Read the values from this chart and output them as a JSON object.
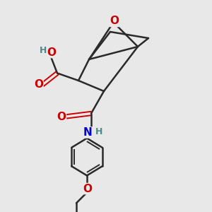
{
  "bg_color": "#e8e8e8",
  "bond_color": "#2a2a2a",
  "bond_width": 1.8,
  "O_color": "#cc0000",
  "N_color": "#0000cc",
  "H_color": "#4a8a8a",
  "font_size_atom": 11,
  "font_size_H": 9,
  "figsize": [
    3.0,
    3.0
  ],
  "dpi": 100,
  "xlim": [
    0,
    10
  ],
  "ylim": [
    0,
    10
  ]
}
